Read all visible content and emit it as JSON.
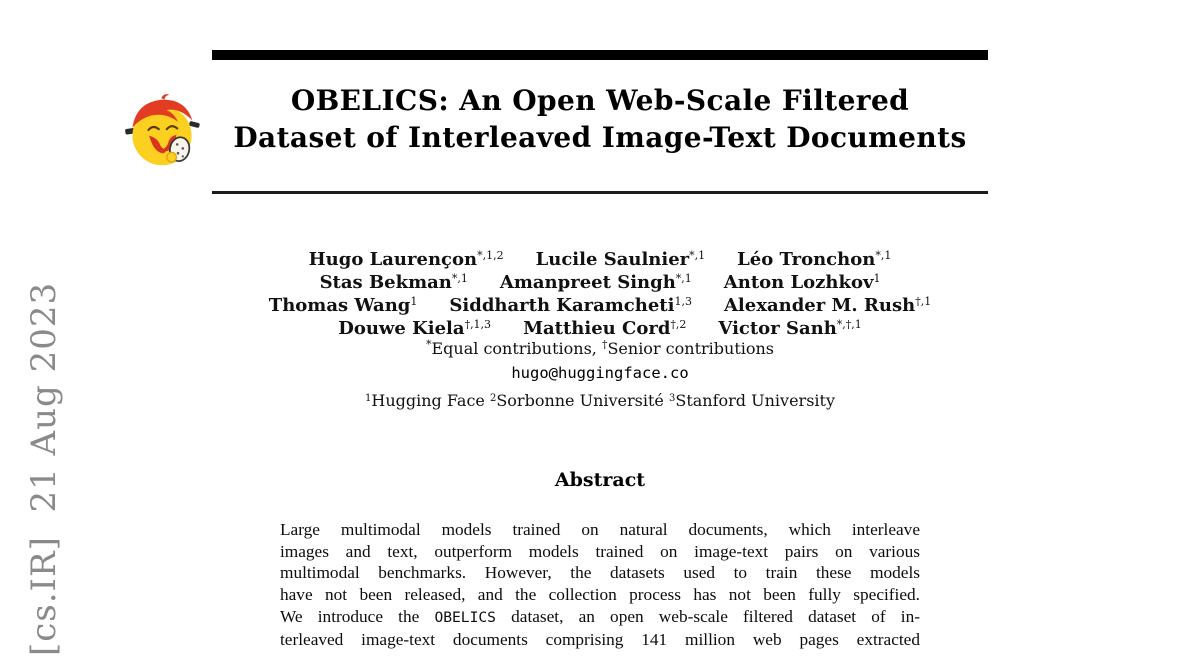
{
  "colors": {
    "rule": "#000000",
    "thin_rule": "#1c1c1c",
    "text": "#111111",
    "watermark_gray": "#8a8a8a",
    "logo_yellow": "#fcd021",
    "logo_red": "#e23d22"
  },
  "watermark": {
    "text": "[cs.IR]  21 Aug 2023"
  },
  "header": {
    "title_line1": "OBELICS: An Open Web-Scale Filtered",
    "title_line2": "Dataset of Interleaved Image-Text Documents",
    "logo_name": "obelix-emoji-logo"
  },
  "authors": {
    "rows": [
      [
        {
          "name": "Hugo Laurençon",
          "sup": "*,1,2"
        },
        {
          "name": "Lucile Saulnier",
          "sup": "*,1"
        },
        {
          "name": "Léo Tronchon",
          "sup": "*,1"
        }
      ],
      [
        {
          "name": "Stas Bekman",
          "sup": "*,1"
        },
        {
          "name": "Amanpreet Singh",
          "sup": "*,1"
        },
        {
          "name": "Anton Lozhkov",
          "sup": "1"
        }
      ],
      [
        {
          "name": "Thomas Wang",
          "sup": "1"
        },
        {
          "name": "Siddharth Karamcheti",
          "sup": "1,3"
        },
        {
          "name": "Alexander M. Rush",
          "sup": "†,1"
        }
      ],
      [
        {
          "name": "Douwe Kiela",
          "sup": "†,1,3"
        },
        {
          "name": "Matthieu Cord",
          "sup": "†,2"
        },
        {
          "name": "Victor Sanh",
          "sup": "*,†,1"
        }
      ]
    ],
    "note": [
      {
        "sup": "*",
        "t": "Equal contributions, "
      },
      {
        "sup": "†",
        "t": "Senior contributions"
      }
    ],
    "email": "hugo@huggingface.co",
    "affiliations": [
      {
        "sup": "1",
        "t": "Hugging Face "
      },
      {
        "sup": "2",
        "t": "Sorbonne Université "
      },
      {
        "sup": "3",
        "t": "Stanford University"
      }
    ]
  },
  "abstract": {
    "heading": "Abstract",
    "lines": [
      [
        {
          "t": "Large multimodal models trained on natural documents, which interleave"
        }
      ],
      [
        {
          "t": "images and text, outperform models trained on image-text pairs on various"
        }
      ],
      [
        {
          "t": "multimodal benchmarks. However, the datasets used to train these models"
        }
      ],
      [
        {
          "t": "have not been released, and the collection process has not been fully specified."
        }
      ],
      [
        {
          "t": "We introduce the "
        },
        {
          "t": "OBELICS",
          "mono": true
        },
        {
          "t": " dataset, an open web-scale filtered dataset of in-"
        }
      ],
      [
        {
          "t": "terleaved image-text documents comprising 141 million web pages extracted"
        }
      ]
    ]
  }
}
